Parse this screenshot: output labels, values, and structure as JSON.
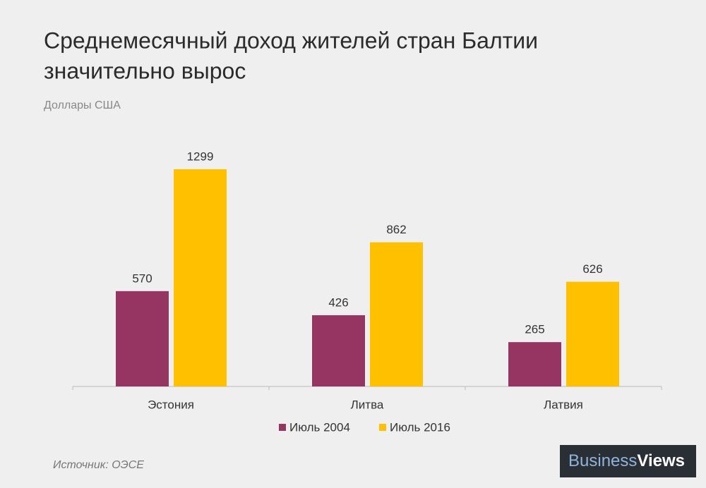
{
  "chart_data": {
    "type": "bar",
    "title": [
      "Среднемесячный доход жителей стран Балтии",
      "значительно вырос"
    ],
    "subtitle": "Доллары США",
    "categories": [
      "Эстония",
      "Литва",
      "Латвия"
    ],
    "series": [
      {
        "name": "Июль 2004",
        "color": "#963562",
        "values": [
          570,
          426,
          265
        ]
      },
      {
        "name": "Июль 2016",
        "color": "#ffc000",
        "values": [
          1299,
          862,
          626
        ]
      }
    ],
    "ylim": [
      0,
      1400
    ],
    "legend": "bottom",
    "source": "Источник: ОЭСЕ",
    "brand": {
      "first": "Business",
      "second": "Views"
    }
  }
}
